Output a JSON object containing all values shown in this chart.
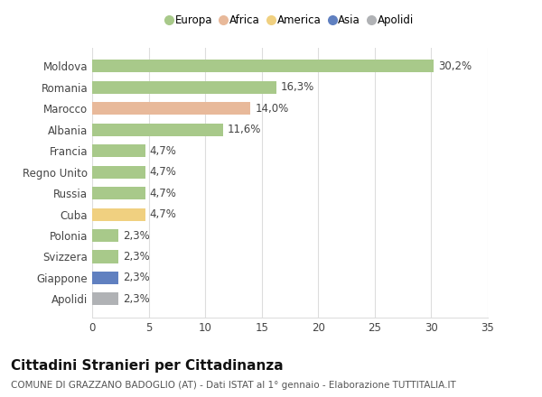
{
  "categories": [
    "Moldova",
    "Romania",
    "Marocco",
    "Albania",
    "Francia",
    "Regno Unito",
    "Russia",
    "Cuba",
    "Polonia",
    "Svizzera",
    "Giappone",
    "Apolidi"
  ],
  "values": [
    30.2,
    16.3,
    14.0,
    11.6,
    4.7,
    4.7,
    4.7,
    4.7,
    2.3,
    2.3,
    2.3,
    2.3
  ],
  "labels": [
    "30,2%",
    "16,3%",
    "14,0%",
    "11,6%",
    "4,7%",
    "4,7%",
    "4,7%",
    "4,7%",
    "2,3%",
    "2,3%",
    "2,3%",
    "2,3%"
  ],
  "colors": [
    "#a8c98a",
    "#a8c98a",
    "#e8b99a",
    "#a8c98a",
    "#a8c98a",
    "#a8c98a",
    "#a8c98a",
    "#f0d080",
    "#a8c98a",
    "#a8c98a",
    "#6080c0",
    "#b0b2b5"
  ],
  "legend_labels": [
    "Europa",
    "Africa",
    "America",
    "Asia",
    "Apolidi"
  ],
  "legend_colors": [
    "#a8c98a",
    "#e8b99a",
    "#f0d080",
    "#6080c0",
    "#b0b2b5"
  ],
  "title": "Cittadini Stranieri per Cittadinanza",
  "subtitle": "COMUNE DI GRAZZANO BADOGLIO (AT) - Dati ISTAT al 1° gennaio - Elaborazione TUTTITALIA.IT",
  "xlim": [
    0,
    35
  ],
  "xticks": [
    0,
    5,
    10,
    15,
    20,
    25,
    30,
    35
  ],
  "bg_color": "#ffffff",
  "grid_color": "#dddddd",
  "bar_height": 0.6,
  "label_fontsize": 8.5,
  "tick_fontsize": 8.5,
  "title_fontsize": 11,
  "subtitle_fontsize": 7.5
}
